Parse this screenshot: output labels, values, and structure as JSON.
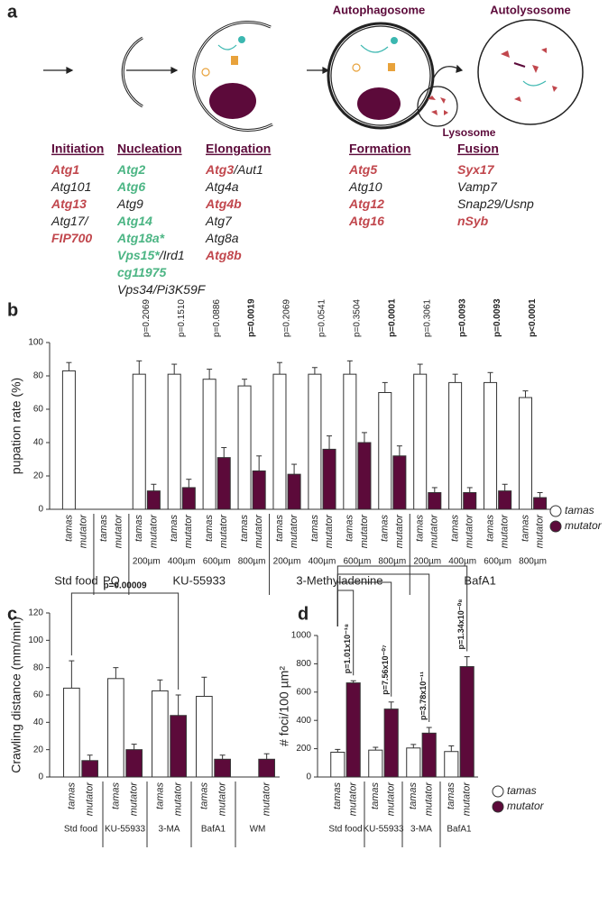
{
  "panel_labels": [
    "a",
    "b",
    "c",
    "d"
  ],
  "diagram": {
    "autophagosome": "Autophagosome",
    "autolysosome": "Autolysosome",
    "lysosome": "Lysosome",
    "stages": [
      {
        "title": "Initiation",
        "genes": [
          [
            {
              "text": "Atg1",
              "color": "#c1474d"
            }
          ],
          [
            {
              "text": "Atg101"
            }
          ],
          [
            {
              "text": "Atg13",
              "color": "#c1474d"
            }
          ],
          [
            {
              "text": "Atg17/"
            }
          ],
          [
            {
              "text": "FIP700",
              "color": "#c1474d"
            }
          ]
        ]
      },
      {
        "title": "Nucleation",
        "genes": [
          [
            {
              "text": "Atg2",
              "color": "#4cb584"
            }
          ],
          [
            {
              "text": "Atg6",
              "color": "#4cb584"
            }
          ],
          [
            {
              "text": "Atg9"
            }
          ],
          [
            {
              "text": "Atg14",
              "color": "#4cb584"
            }
          ],
          [
            {
              "text": "Atg18a*",
              "color": "#4cb584"
            }
          ],
          [
            {
              "text": "Vps15*",
              "color": "#4cb584"
            },
            {
              "text": "/Ird1"
            }
          ],
          [
            {
              "text": "cg11975",
              "color": "#4cb584"
            }
          ],
          [
            {
              "text": "Vps34/Pi3K59F"
            }
          ]
        ]
      },
      {
        "title": "Elongation",
        "genes": [
          [
            {
              "text": "Atg3",
              "color": "#c1474d"
            },
            {
              "text": "/Aut1"
            }
          ],
          [
            {
              "text": "Atg4a"
            }
          ],
          [
            {
              "text": "Atg4b",
              "color": "#c1474d"
            }
          ],
          [
            {
              "text": "Atg7"
            }
          ],
          [
            {
              "text": "Atg8a"
            }
          ],
          [
            {
              "text": "Atg8b",
              "color": "#c1474d"
            }
          ]
        ]
      },
      {
        "title": "Formation",
        "genes": [
          [
            {
              "text": "Atg5",
              "color": "#c1474d"
            }
          ],
          [
            {
              "text": "Atg10"
            }
          ],
          [
            {
              "text": "Atg12",
              "color": "#c1474d"
            }
          ],
          [
            {
              "text": "Atg16",
              "color": "#c1474d"
            }
          ]
        ]
      },
      {
        "title": "Fusion",
        "genes": [
          [
            {
              "text": "Syx17",
              "color": "#c1474d"
            }
          ],
          [
            {
              "text": "Vamp7"
            }
          ],
          [
            {
              "text": "Snap29/Usnp"
            }
          ],
          [
            {
              "text": "nSyb",
              "color": "#c1474d"
            }
          ]
        ]
      }
    ]
  },
  "chart_data": [
    {
      "type": "bar",
      "ylabel": "pupation rate (%)",
      "ylim": [
        0,
        100
      ],
      "yticks": [
        0,
        20,
        40,
        60,
        80,
        100
      ],
      "legend": "right",
      "groups": [
        {
          "name": "Std food",
          "categories": [
            null
          ]
        },
        {
          "name": "PQ",
          "categories": [
            null
          ]
        },
        {
          "name": "KU-55933",
          "categories": [
            "200µm",
            "400µm",
            "600µm",
            "800µm"
          ]
        },
        {
          "name": "3-Methyladenine",
          "categories": [
            "200µm",
            "400µm",
            "600µm",
            "800µm"
          ]
        },
        {
          "name": "BafA1",
          "categories": [
            "200µm",
            "400µm",
            "600µm",
            "800µm"
          ]
        }
      ],
      "series": [
        {
          "name": "tamas",
          "color": "#ffffff",
          "values": [
            83,
            0,
            81,
            81,
            78,
            74,
            81,
            81,
            81,
            70,
            81,
            76,
            76,
            67
          ],
          "errors": [
            5,
            0,
            8,
            6,
            6,
            4,
            7,
            4,
            8,
            6,
            6,
            5,
            6,
            4
          ]
        },
        {
          "name": "mutator",
          "color": "#5c0a3a",
          "values": [
            0,
            0,
            11,
            13,
            31,
            23,
            21,
            36,
            40,
            32,
            10,
            10,
            11,
            7
          ],
          "errors": [
            0,
            0,
            4,
            5,
            6,
            9,
            6,
            8,
            6,
            6,
            3,
            3,
            4,
            3
          ]
        }
      ],
      "p_values": [
        null,
        null,
        {
          "label": "p=0.2069",
          "bold": false
        },
        {
          "label": "p=0.1510",
          "bold": false
        },
        {
          "label": "p=0.0886",
          "bold": false
        },
        {
          "label": "p=0.0019",
          "bold": true
        },
        {
          "label": "p=0.2069",
          "bold": false
        },
        {
          "label": "p=0.0541",
          "bold": false
        },
        {
          "label": "p=0.3504",
          "bold": false
        },
        {
          "label": "p=0.0001",
          "bold": true
        },
        {
          "label": "p=0.3061",
          "bold": false
        },
        {
          "label": "p=0.0093",
          "bold": true
        },
        {
          "label": "p=0.0093",
          "bold": true
        },
        {
          "label": "p<0.0001",
          "bold": true
        }
      ]
    },
    {
      "type": "bar",
      "ylabel": "Crawling distance (mm/min)",
      "ylim": [
        0,
        120
      ],
      "yticks": [
        0,
        20,
        40,
        60,
        80,
        100,
        120
      ],
      "categories": [
        "Std food",
        "KU-55933",
        "3-MA",
        "BafA1",
        "WM"
      ],
      "series": [
        {
          "name": "tamas",
          "color": "#ffffff",
          "values": [
            65,
            72,
            63,
            59,
            null
          ],
          "errors": [
            20,
            8,
            8,
            14,
            null
          ]
        },
        {
          "name": "mutator",
          "color": "#5c0a3a",
          "values": [
            12,
            20,
            45,
            13,
            13
          ],
          "errors": [
            4,
            4,
            15,
            3,
            4
          ]
        }
      ],
      "annotations": [
        {
          "text": "p=0.00009",
          "from": {
            "series": 0,
            "category": 0
          },
          "to": {
            "series": 1,
            "category": 2
          }
        }
      ]
    },
    {
      "type": "bar",
      "ylabel": "# foci/100 µm²",
      "ylim": [
        0,
        1000
      ],
      "yticks": [
        0,
        200,
        400,
        600,
        800,
        1000
      ],
      "legend": "right",
      "categories": [
        "Std food",
        "KU-55933",
        "3-MA",
        "BafA1"
      ],
      "series": [
        {
          "name": "tamas",
          "color": "#ffffff",
          "values": [
            175,
            190,
            205,
            180
          ],
          "errors": [
            20,
            20,
            25,
            40
          ]
        },
        {
          "name": "mutator",
          "color": "#5c0a3a",
          "values": [
            665,
            480,
            310,
            780
          ],
          "errors": [
            15,
            50,
            40,
            70
          ]
        }
      ],
      "annotations": [
        {
          "text": "p=1.01x10⁻¹⁸",
          "from": {
            "series": 0,
            "category": 0
          },
          "to": {
            "series": 1,
            "category": 0
          }
        },
        {
          "text": "p=7.56x10⁻⁰⁷",
          "from": {
            "series": 0,
            "category": 0
          },
          "to": {
            "series": 1,
            "category": 1
          }
        },
        {
          "text": "p=3.78x10⁻¹¹",
          "from": {
            "series": 0,
            "category": 0
          },
          "to": {
            "series": 1,
            "category": 2
          }
        },
        {
          "text": "p=1.34x10⁻⁰⁸",
          "from": {
            "series": 0,
            "category": 0
          },
          "to": {
            "series": 1,
            "category": 3
          }
        }
      ]
    }
  ]
}
